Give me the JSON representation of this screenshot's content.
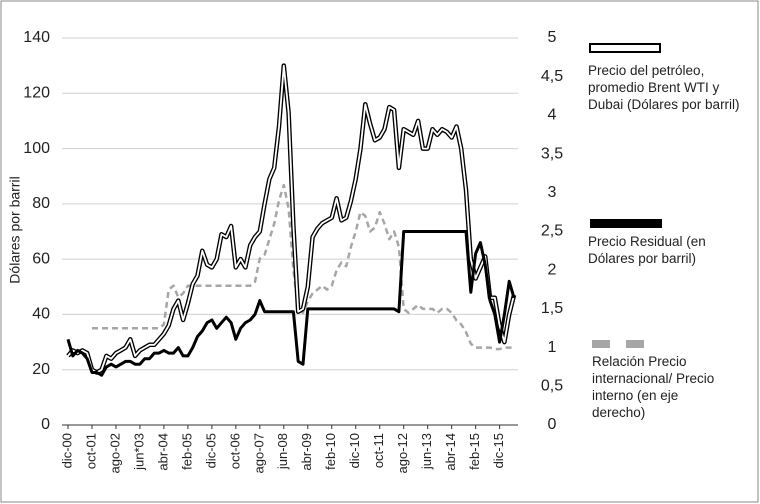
{
  "chart_data": {
    "type": "line",
    "y_label": "Dólares por barril",
    "categories": [
      "dic-00",
      null,
      null,
      null,
      null,
      "oct-01",
      null,
      null,
      null,
      null,
      "ago-02",
      null,
      null,
      null,
      null,
      "jun*03",
      null,
      null,
      null,
      null,
      "abr-04",
      null,
      null,
      null,
      null,
      "feb-05",
      null,
      null,
      null,
      null,
      "dic-05",
      null,
      null,
      null,
      null,
      "oct-06",
      null,
      null,
      null,
      null,
      "ago-07",
      null,
      null,
      null,
      null,
      "jun-08",
      null,
      null,
      null,
      null,
      "abr-09",
      null,
      null,
      null,
      null,
      "feb-10",
      null,
      null,
      null,
      null,
      "dic-10",
      null,
      null,
      null,
      null,
      "oct-11",
      null,
      null,
      null,
      null,
      "ago-12",
      null,
      null,
      null,
      null,
      "jun-13",
      null,
      null,
      null,
      null,
      "abr-14",
      null,
      null,
      null,
      null,
      "feb-15",
      null,
      null,
      null,
      null,
      "dic-15",
      null,
      null,
      null
    ],
    "series": [
      {
        "name": "Precio del petróleo, promedio Brent WTI y Dubai (Dólares por barril)",
        "color": "#ffffff",
        "style": "double",
        "values": [
          25,
          27,
          26,
          27,
          26,
          20,
          19,
          20,
          25,
          24,
          26,
          27,
          28,
          31,
          25,
          27,
          28,
          29,
          29,
          31,
          33,
          36,
          42,
          45,
          38,
          44,
          51,
          54,
          63,
          58,
          57,
          60,
          69,
          68,
          72,
          57,
          60,
          57,
          65,
          68,
          70,
          80,
          89,
          93,
          108,
          130,
          113,
          72,
          41,
          42,
          50,
          68,
          71,
          73,
          74,
          75,
          82,
          74,
          75,
          81,
          89,
          100,
          116,
          109,
          103,
          104,
          107,
          115,
          114,
          93,
          107,
          106,
          105,
          110,
          100,
          100,
          107,
          105,
          107,
          106,
          104,
          108,
          100,
          85,
          60,
          53,
          57,
          61,
          46,
          46,
          36,
          30,
          40,
          47
        ]
      },
      {
        "name": "Precio Residual (en Dólares por barril)",
        "color": "#000000",
        "style": "solid",
        "values": [
          31,
          25,
          27,
          26,
          24,
          19,
          19,
          18,
          21,
          22,
          21,
          22,
          23,
          23,
          22,
          22,
          24,
          24,
          26,
          26,
          27,
          26,
          26,
          28,
          25,
          25,
          28,
          32,
          34,
          37,
          38,
          35,
          37,
          39,
          37,
          31,
          35,
          37,
          38,
          40,
          45,
          41,
          41,
          41,
          41,
          41,
          41,
          41,
          23,
          22,
          42,
          42,
          42,
          42,
          42,
          42,
          42,
          42,
          42,
          42,
          42,
          42,
          42,
          42,
          42,
          42,
          42,
          42,
          42,
          41,
          70,
          70,
          70,
          70,
          70,
          70,
          70,
          70,
          70,
          70,
          70,
          70,
          70,
          70,
          48,
          62,
          66,
          58,
          45,
          40,
          30,
          40,
          52,
          46
        ]
      },
      {
        "name": "Relación Precio internacional/ Precio interno (en eje derecho)",
        "color": "#a6a6a6",
        "style": "dashed",
        "axis": "y2",
        "values": [
          null,
          null,
          null,
          null,
          null,
          1.25,
          1.25,
          1.25,
          1.25,
          1.25,
          1.25,
          1.25,
          1.25,
          1.25,
          1.25,
          1.25,
          1.25,
          1.25,
          1.25,
          1.25,
          1.3,
          1.75,
          1.8,
          1.65,
          1.7,
          1.8,
          1.8,
          1.8,
          1.8,
          1.8,
          1.8,
          1.8,
          1.8,
          1.8,
          1.8,
          1.8,
          1.8,
          1.8,
          1.8,
          1.85,
          2.15,
          2.2,
          2.4,
          2.6,
          2.9,
          3.1,
          2.8,
          2,
          1.5,
          1.45,
          1.6,
          1.7,
          1.75,
          1.8,
          1.75,
          1.8,
          2,
          2.1,
          2.05,
          2.3,
          2.5,
          2.75,
          2.7,
          2.5,
          2.55,
          2.75,
          2.6,
          2.4,
          2.5,
          2.3,
          1.5,
          1.45,
          1.5,
          1.55,
          1.5,
          1.5,
          1.5,
          1.45,
          1.5,
          1.5,
          1.45,
          1.35,
          1.3,
          1.2,
          1.05,
          1,
          1,
          1,
          1,
          0.98,
          0.98,
          1,
          1,
          1
        ]
      }
    ],
    "ylim": [
      0,
      140
    ],
    "yticks": [
      0,
      20,
      40,
      60,
      80,
      100,
      120,
      140
    ],
    "y2lim": [
      0,
      5
    ],
    "y2ticks": [
      0,
      {
        "value": 0.5,
        "label": "0,5"
      },
      1,
      {
        "value": 1.5,
        "label": "1,5"
      },
      2,
      {
        "value": 2.5,
        "label": "2,5"
      },
      3,
      {
        "value": 3.5,
        "label": "3,5"
      },
      4,
      {
        "value": 4.5,
        "label": "4,5"
      },
      5
    ],
    "grid": true,
    "legend": "right"
  }
}
